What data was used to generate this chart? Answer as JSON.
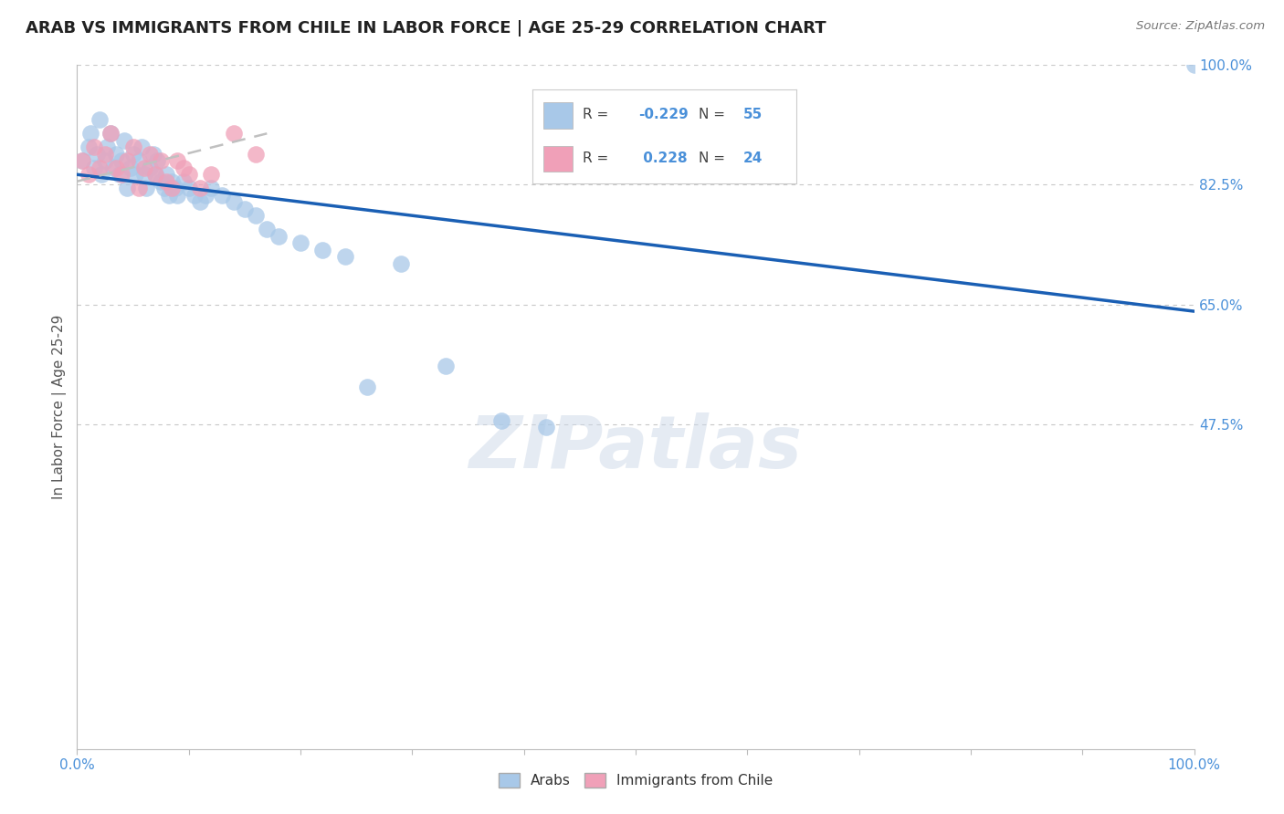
{
  "title": "ARAB VS IMMIGRANTS FROM CHILE IN LABOR FORCE | AGE 25-29 CORRELATION CHART",
  "source": "Source: ZipAtlas.com",
  "ylabel": "In Labor Force | Age 25-29",
  "xlim": [
    0.0,
    1.0
  ],
  "ylim": [
    0.0,
    1.0
  ],
  "y_ticks_right": [
    1.0,
    0.825,
    0.65,
    0.475
  ],
  "y_tick_labels_right": [
    "100.0%",
    "82.5%",
    "65.0%",
    "47.5%"
  ],
  "grid_color": "#c8c8c8",
  "background_color": "#ffffff",
  "legend_R_blue": "-0.229",
  "legend_N_blue": "55",
  "legend_R_pink": "0.228",
  "legend_N_pink": "24",
  "blue_color": "#a8c8e8",
  "pink_color": "#f0a0b8",
  "blue_line_color": "#1a5fb4",
  "pink_line_color": "#c0c0c0",
  "label_color": "#4a90d9",
  "watermark": "ZIPatlas",
  "blue_scatter_x": [
    0.005,
    0.01,
    0.012,
    0.015,
    0.018,
    0.02,
    0.022,
    0.025,
    0.027,
    0.03,
    0.032,
    0.035,
    0.038,
    0.04,
    0.042,
    0.045,
    0.048,
    0.05,
    0.052,
    0.055,
    0.058,
    0.06,
    0.062,
    0.065,
    0.068,
    0.07,
    0.072,
    0.075,
    0.078,
    0.08,
    0.082,
    0.085,
    0.088,
    0.09,
    0.095,
    0.1,
    0.105,
    0.11,
    0.115,
    0.12,
    0.13,
    0.14,
    0.15,
    0.16,
    0.17,
    0.18,
    0.2,
    0.22,
    0.24,
    0.26,
    0.29,
    0.33,
    0.38,
    0.42,
    1.0
  ],
  "blue_scatter_y": [
    0.86,
    0.88,
    0.9,
    0.85,
    0.87,
    0.92,
    0.84,
    0.86,
    0.88,
    0.9,
    0.85,
    0.87,
    0.84,
    0.86,
    0.89,
    0.82,
    0.85,
    0.87,
    0.84,
    0.86,
    0.88,
    0.84,
    0.82,
    0.85,
    0.87,
    0.84,
    0.86,
    0.83,
    0.82,
    0.84,
    0.81,
    0.83,
    0.82,
    0.81,
    0.83,
    0.82,
    0.81,
    0.8,
    0.81,
    0.82,
    0.81,
    0.8,
    0.79,
    0.78,
    0.76,
    0.75,
    0.74,
    0.73,
    0.72,
    0.53,
    0.71,
    0.56,
    0.48,
    0.47,
    1.0
  ],
  "pink_scatter_x": [
    0.005,
    0.01,
    0.015,
    0.02,
    0.025,
    0.03,
    0.035,
    0.04,
    0.045,
    0.05,
    0.055,
    0.06,
    0.065,
    0.07,
    0.075,
    0.08,
    0.085,
    0.09,
    0.095,
    0.1,
    0.11,
    0.12,
    0.14,
    0.16
  ],
  "pink_scatter_y": [
    0.86,
    0.84,
    0.88,
    0.85,
    0.87,
    0.9,
    0.85,
    0.84,
    0.86,
    0.88,
    0.82,
    0.85,
    0.87,
    0.84,
    0.86,
    0.83,
    0.82,
    0.86,
    0.85,
    0.84,
    0.82,
    0.84,
    0.9,
    0.87
  ],
  "blue_trend_x0": 0.0,
  "blue_trend_x1": 1.0,
  "blue_trend_y0": 0.84,
  "blue_trend_y1": 0.64,
  "pink_trend_x0": 0.0,
  "pink_trend_x1": 0.17,
  "pink_trend_y0": 0.83,
  "pink_trend_y1": 0.9
}
